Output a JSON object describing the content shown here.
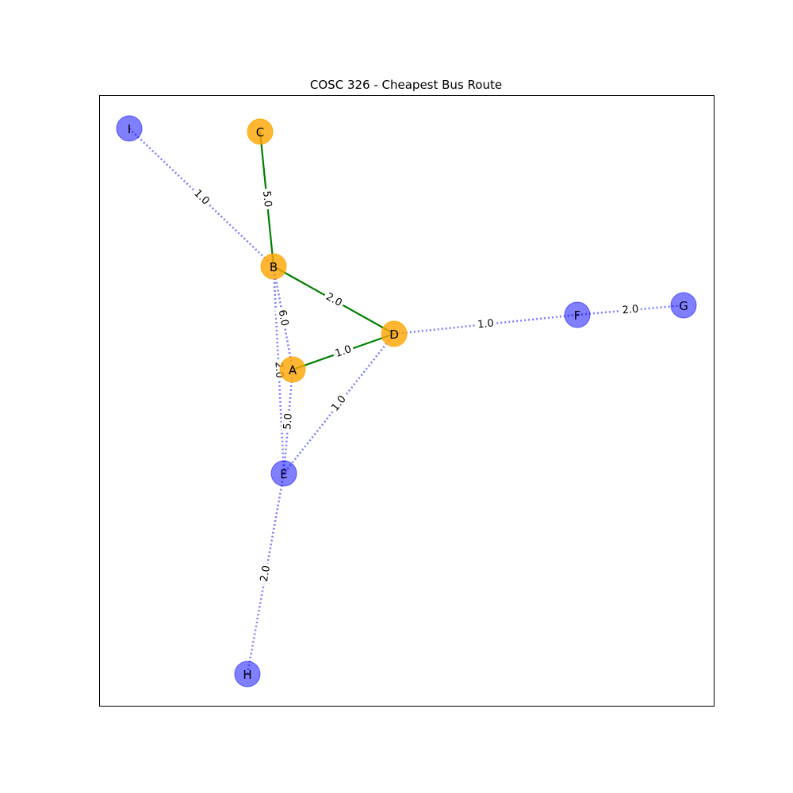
{
  "title": "COSC 326 - Cheapest Bus Route",
  "colors": {
    "route_node": "#ffa500",
    "other_node": "#0000ff",
    "route_edge": "#008000",
    "other_edge": "#0000ff",
    "frame": "#000000"
  },
  "nodes": [
    {
      "id": "A",
      "label": "A",
      "on_route": true
    },
    {
      "id": "B",
      "label": "B",
      "on_route": true
    },
    {
      "id": "C",
      "label": "C",
      "on_route": true
    },
    {
      "id": "D",
      "label": "D",
      "on_route": true
    },
    {
      "id": "E",
      "label": "E",
      "on_route": false
    },
    {
      "id": "F",
      "label": "F",
      "on_route": false
    },
    {
      "id": "G",
      "label": "G",
      "on_route": false
    },
    {
      "id": "H",
      "label": "H",
      "on_route": false
    },
    {
      "id": "I",
      "label": "I",
      "on_route": false
    }
  ],
  "edges": [
    {
      "from": "I",
      "to": "B",
      "weight": "1.0",
      "on_route": false
    },
    {
      "from": "C",
      "to": "B",
      "weight": "5.0",
      "on_route": true
    },
    {
      "from": "B",
      "to": "D",
      "weight": "2.0",
      "on_route": true
    },
    {
      "from": "B",
      "to": "A",
      "weight": "6.0",
      "on_route": false
    },
    {
      "from": "B",
      "to": "E",
      "weight": "2.0",
      "on_route": false
    },
    {
      "from": "A",
      "to": "D",
      "weight": "1.0",
      "on_route": true
    },
    {
      "from": "A",
      "to": "E",
      "weight": "5.0",
      "on_route": false
    },
    {
      "from": "D",
      "to": "E",
      "weight": "1.0",
      "on_route": false
    },
    {
      "from": "D",
      "to": "F",
      "weight": "1.0",
      "on_route": false
    },
    {
      "from": "F",
      "to": "G",
      "weight": "2.0",
      "on_route": false
    },
    {
      "from": "E",
      "to": "H",
      "weight": "2.0",
      "on_route": false
    }
  ]
}
